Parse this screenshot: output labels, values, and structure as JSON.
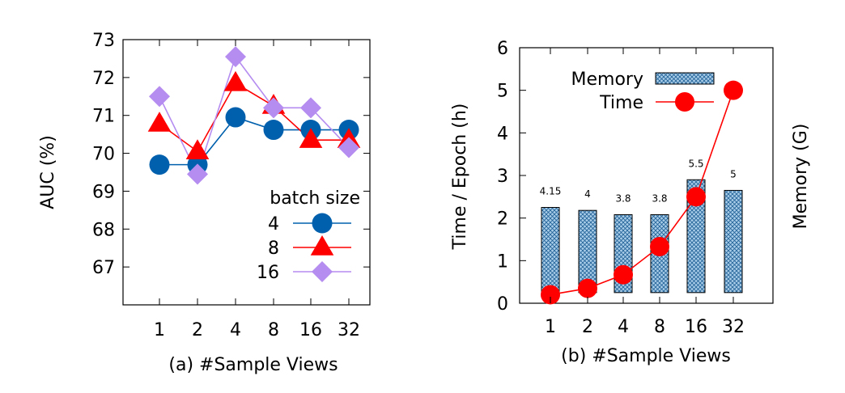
{
  "chart_data": [
    {
      "type": "line",
      "title": "",
      "xlabel": "(a) #Sample Views",
      "ylabel": "AUC (%)",
      "categories": [
        "1",
        "2",
        "4",
        "8",
        "16",
        "32"
      ],
      "ylim": [
        66,
        73
      ],
      "yticks": [
        67,
        68,
        69,
        70,
        71,
        72,
        73
      ],
      "legend_title": "batch size",
      "legend_position": "bottom-right",
      "grid": false,
      "series": [
        {
          "name": "4",
          "marker": "circle",
          "color": "#0060ad",
          "values": [
            69.7,
            69.7,
            70.95,
            70.62,
            70.62,
            70.62
          ]
        },
        {
          "name": "8",
          "marker": "triangle",
          "color": "#ff0000",
          "values": [
            70.78,
            70.05,
            71.85,
            71.25,
            70.35,
            70.35
          ]
        },
        {
          "name": "16",
          "marker": "diamond",
          "color": "#b58cf0",
          "values": [
            71.5,
            69.45,
            72.55,
            71.2,
            71.2,
            70.15
          ]
        }
      ]
    },
    {
      "type": "bar+line",
      "title": "",
      "xlabel": "(b) #Sample Views",
      "ylabel": "Time / Epoch (h)",
      "ylabel_right": "Memory (G)",
      "categories": [
        "1",
        "2",
        "4",
        "8",
        "16",
        "32"
      ],
      "ylim": [
        0,
        6
      ],
      "yticks": [
        0,
        1,
        2,
        3,
        4,
        5,
        6
      ],
      "legend_position": "top-right",
      "grid": false,
      "bars": {
        "name": "Memory",
        "color": "#a9cde8",
        "pattern": "crosshatch",
        "bottom": 0.25,
        "tops": [
          2.25,
          2.18,
          2.08,
          2.08,
          2.9,
          2.65
        ],
        "labels": [
          "4.15",
          "4",
          "3.8",
          "3.8",
          "5.5",
          "5"
        ]
      },
      "line": {
        "name": "Time",
        "marker": "circle",
        "color": "#ff0000",
        "values": [
          0.2,
          0.35,
          0.67,
          1.33,
          2.5,
          5.0
        ]
      }
    }
  ]
}
